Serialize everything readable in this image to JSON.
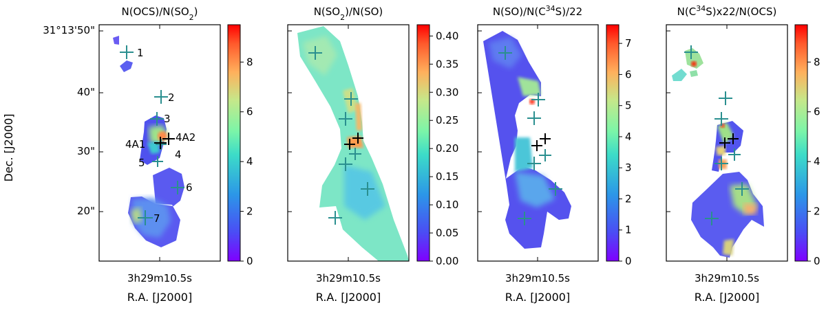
{
  "figure": {
    "dec_axis_label": "Dec. [J2000]",
    "dec_tick_labels": [
      "31°13'50\"",
      "40\"",
      "30\"",
      "20\""
    ],
    "ra_tick_label": "3h29m10.5s",
    "ra_axis_label": "R.A. [J2000]"
  },
  "chart_data": [
    {
      "type": "heatmap",
      "title": "N(OCS)/N(SO2)",
      "title_parts": [
        "N(OCS)/N(SO",
        "2",
        ")"
      ],
      "xlabel": "R.A. [J2000]",
      "ylabel": "Dec. [J2000]",
      "colorbar": {
        "min": 0,
        "max": 9.5,
        "ticks": [
          0,
          2,
          4,
          6,
          8
        ],
        "tick_labels": [
          "0",
          "2",
          "4",
          "6",
          "8"
        ]
      },
      "source_labels": [
        "1",
        "2",
        "3",
        "4A1",
        "4A2",
        "4",
        "5",
        "6",
        "7"
      ]
    },
    {
      "type": "heatmap",
      "title": "N(SO2)/N(SO)",
      "title_parts": [
        "N(SO",
        "2",
        ")/N(SO)"
      ],
      "xlabel": "R.A. [J2000]",
      "colorbar": {
        "min": 0,
        "max": 0.42,
        "ticks": [
          0,
          0.05,
          0.1,
          0.15,
          0.2,
          0.25,
          0.3,
          0.35,
          0.4
        ],
        "tick_labels": [
          "0.00",
          "0.05",
          "0.10",
          "0.15",
          "0.20",
          "0.25",
          "0.30",
          "0.35",
          "0.40"
        ]
      }
    },
    {
      "type": "heatmap",
      "title": "N(SO)/N(C34S)/22",
      "title_parts": [
        "N(SO)/N(C",
        "34",
        "S)/22"
      ],
      "xlabel": "R.A. [J2000]",
      "colorbar": {
        "min": 0,
        "max": 7.6,
        "ticks": [
          0,
          1,
          2,
          3,
          4,
          5,
          6,
          7
        ],
        "tick_labels": [
          "0",
          "1",
          "2",
          "3",
          "4",
          "5",
          "6",
          "7"
        ]
      }
    },
    {
      "type": "heatmap",
      "title": "N(C34S)x22/N(OCS)",
      "title_parts": [
        "N(C",
        "34",
        "S)x22/N(OCS)"
      ],
      "xlabel": "R.A. [J2000]",
      "colorbar": {
        "min": 0,
        "max": 9.5,
        "ticks": [
          0,
          2,
          4,
          6,
          8
        ],
        "tick_labels": [
          "0",
          "2",
          "4",
          "6",
          "8"
        ]
      }
    }
  ]
}
